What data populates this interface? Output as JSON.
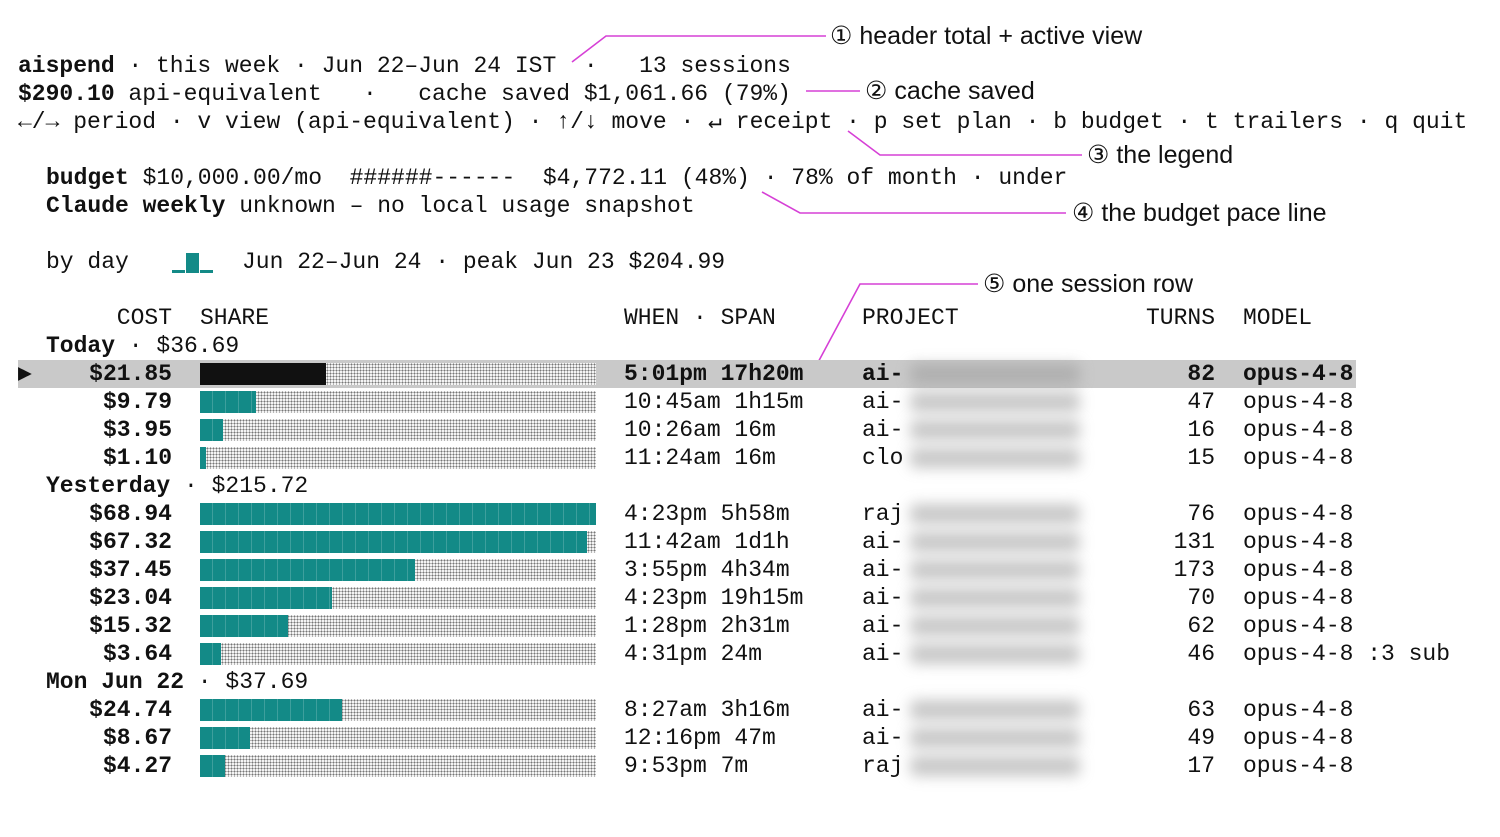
{
  "header": {
    "app": "aispend",
    "summary": "· this week · Jun 22–Jun 24 IST  ·   13 sessions",
    "total": "$290.10",
    "total_suffix": "api-equivalent   ·   cache saved $1,061.66 (79%)",
    "keys": "←/→ period · v view (api-equivalent) · ↑/↓ move · ↵ receipt · p set plan · b budget · t trailers · q quit"
  },
  "budget": {
    "label": "budget",
    "line": "$10,000.00/mo  ######------  $4,772.11 (48%) · 78% of month · under",
    "weekly_label": "Claude weekly",
    "weekly_text": "unknown – no local usage snapshot"
  },
  "by_day": {
    "label": "by day",
    "text": "Jun 22–Jun 24 · peak Jun 23 $204.99"
  },
  "columns": {
    "cost": "COST",
    "share": "SHARE",
    "when": "WHEN · SPAN",
    "project": "PROJECT",
    "turns": "TURNS",
    "model": "MODEL"
  },
  "selection_marker": "▶",
  "groups": [
    {
      "label": "Today",
      "total": 36.69,
      "total_label": "· $36.69",
      "rows": [
        {
          "cost": 21.85,
          "cost_label": "$21.85",
          "when": "5:01pm 17h20m",
          "project": "ai-",
          "turns": 82,
          "model": "opus-4-8",
          "selected": true
        },
        {
          "cost": 9.79,
          "cost_label": "$9.79",
          "when": "10:45am 1h15m",
          "project": "ai-",
          "turns": 47,
          "model": "opus-4-8"
        },
        {
          "cost": 3.95,
          "cost_label": "$3.95",
          "when": "10:26am 16m",
          "project": "ai-",
          "turns": 16,
          "model": "opus-4-8"
        },
        {
          "cost": 1.1,
          "cost_label": "$1.10",
          "when": "11:24am 16m",
          "project": "clo",
          "turns": 15,
          "model": "opus-4-8"
        }
      ]
    },
    {
      "label": "Yesterday",
      "total": 215.72,
      "total_label": "· $215.72",
      "rows": [
        {
          "cost": 68.94,
          "cost_label": "$68.94",
          "when": "4:23pm 5h58m",
          "project": "raj",
          "turns": 76,
          "model": "opus-4-8"
        },
        {
          "cost": 67.32,
          "cost_label": "$67.32",
          "when": "11:42am 1d1h",
          "project": "ai-",
          "turns": 131,
          "model": "opus-4-8"
        },
        {
          "cost": 37.45,
          "cost_label": "$37.45",
          "when": "3:55pm 4h34m",
          "project": "ai-",
          "turns": 173,
          "model": "opus-4-8"
        },
        {
          "cost": 23.04,
          "cost_label": "$23.04",
          "when": "4:23pm 19h15m",
          "project": "ai-",
          "turns": 70,
          "model": "opus-4-8"
        },
        {
          "cost": 15.32,
          "cost_label": "$15.32",
          "when": "1:28pm 2h31m",
          "project": "ai-",
          "turns": 62,
          "model": "opus-4-8"
        },
        {
          "cost": 3.64,
          "cost_label": "$3.64",
          "when": "4:31pm 24m",
          "project": "ai-",
          "turns": 46,
          "model": "opus-4-8 :3 sub"
        }
      ]
    },
    {
      "label": "Mon Jun 22",
      "total": 37.69,
      "total_label": "· $37.69",
      "rows": [
        {
          "cost": 24.74,
          "cost_label": "$24.74",
          "when": "8:27am 3h16m",
          "project": "ai-",
          "turns": 63,
          "model": "opus-4-8"
        },
        {
          "cost": 8.67,
          "cost_label": "$8.67",
          "when": "12:16pm 47m",
          "project": "ai-",
          "turns": 49,
          "model": "opus-4-8"
        },
        {
          "cost": 4.27,
          "cost_label": "$4.27",
          "when": "9:53pm 7m",
          "project": "raj",
          "turns": 17,
          "model": "opus-4-8"
        }
      ]
    }
  ],
  "annotations": [
    "① header total + active view",
    "② cache saved",
    "③ the legend",
    "④ the budget pace line",
    "⑤ one session row"
  ]
}
